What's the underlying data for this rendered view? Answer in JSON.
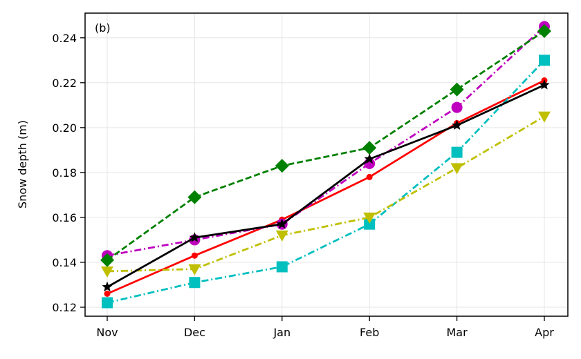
{
  "chart_data": {
    "type": "line",
    "panel_label": "(b)",
    "xlabel": "",
    "ylabel": "Snow depth (m)",
    "categories": [
      "Nov",
      "Dec",
      "Jan",
      "Feb",
      "Mar",
      "Apr"
    ],
    "ylim": [
      0.116,
      0.251
    ],
    "yticks": [
      0.12,
      0.14,
      0.16,
      0.18,
      0.2,
      0.22,
      0.24
    ],
    "ytick_labels": [
      "0.12",
      "0.14",
      "0.16",
      "0.18",
      "0.20",
      "0.22",
      "0.24"
    ],
    "grid": true,
    "legend": "none",
    "series": [
      {
        "values": [
          0.126,
          0.143,
          0.159,
          0.178,
          0.202,
          0.221
        ],
        "color": "#ff0000",
        "dash": "solid",
        "marker": "dot-small"
      },
      {
        "values": [
          0.122,
          0.131,
          0.138,
          0.157,
          0.189,
          0.23
        ],
        "color": "#00bfbf",
        "dash": "dashdot",
        "marker": "square"
      },
      {
        "values": [
          0.136,
          0.137,
          0.152,
          0.16,
          0.182,
          0.205
        ],
        "color": "#bfbf00",
        "dash": "dashdot",
        "marker": "triangle-down"
      },
      {
        "values": [
          0.143,
          0.15,
          0.157,
          0.184,
          0.209,
          0.245
        ],
        "color": "#bf00bf",
        "dash": "dashdot",
        "marker": "circle"
      },
      {
        "values": [
          0.141,
          0.169,
          0.183,
          0.191,
          0.217,
          0.243
        ],
        "color": "#008000",
        "dash": "dashed",
        "marker": "diamond"
      },
      {
        "values": [
          0.129,
          0.151,
          0.157,
          0.186,
          0.201,
          0.219
        ],
        "color": "#000000",
        "dash": "solid",
        "marker": "star"
      }
    ]
  }
}
